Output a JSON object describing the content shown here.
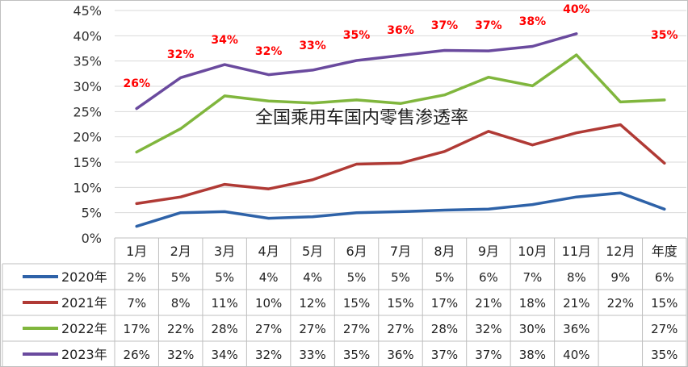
{
  "chart_data": {
    "type": "line",
    "title": "全国乘用车国内零售渗透率",
    "categories": [
      "1月",
      "2月",
      "3月",
      "4月",
      "5月",
      "6月",
      "7月",
      "8月",
      "9月",
      "10月",
      "11月",
      "12月",
      "年度"
    ],
    "y_ticks": [
      "0%",
      "5%",
      "10%",
      "15%",
      "20%",
      "25%",
      "30%",
      "35%",
      "40%",
      "45%"
    ],
    "ylim": [
      0,
      45
    ],
    "y_unit": "%",
    "grid": true,
    "legend": "table-below",
    "series": [
      {
        "name": "2020年",
        "color": "#2e62a8",
        "values": [
          2.3,
          5.0,
          5.2,
          3.9,
          4.2,
          5.0,
          5.2,
          5.5,
          5.7,
          6.6,
          8.1,
          8.9,
          5.7
        ],
        "table": [
          "2%",
          "5%",
          "5%",
          "4%",
          "4%",
          "5%",
          "5%",
          "5%",
          "6%",
          "7%",
          "8%",
          "9%",
          "6%"
        ]
      },
      {
        "name": "2021年",
        "color": "#b03a35",
        "values": [
          6.8,
          8.1,
          10.6,
          9.7,
          11.5,
          14.6,
          14.8,
          17.1,
          21.1,
          18.4,
          20.8,
          22.4,
          14.8
        ],
        "table": [
          "7%",
          "8%",
          "11%",
          "10%",
          "12%",
          "15%",
          "15%",
          "17%",
          "21%",
          "18%",
          "21%",
          "22%",
          "15%"
        ]
      },
      {
        "name": "2022年",
        "color": "#80b63d",
        "values": [
          17.0,
          21.6,
          28.1,
          27.1,
          26.7,
          27.3,
          26.6,
          28.3,
          31.8,
          30.1,
          36.2,
          26.9,
          27.3
        ],
        "table": [
          "17%",
          "22%",
          "28%",
          "27%",
          "27%",
          "27%",
          "27%",
          "28%",
          "32%",
          "30%",
          "36%",
          "",
          "27%"
        ]
      },
      {
        "name": "2023年",
        "color": "#6a4a9e",
        "values": [
          25.6,
          31.7,
          34.3,
          32.3,
          33.2,
          35.1,
          36.1,
          37.1,
          37.0,
          37.9,
          40.4,
          null,
          null
        ],
        "table": [
          "26%",
          "32%",
          "34%",
          "32%",
          "33%",
          "35%",
          "36%",
          "37%",
          "37%",
          "38%",
          "40%",
          "",
          "35%"
        ],
        "data_labels": [
          "26%",
          "32%",
          "34%",
          "32%",
          "33%",
          "35%",
          "36%",
          "37%",
          "37%",
          "38%",
          "40%",
          "",
          "35%"
        ]
      }
    ]
  }
}
